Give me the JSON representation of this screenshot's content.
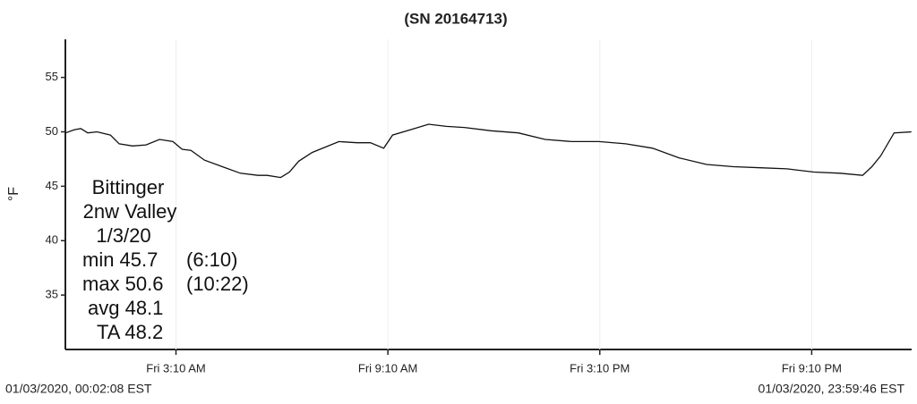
{
  "chart_data": {
    "type": "line",
    "title": "(SN 20164713)",
    "y_label": "°F",
    "x": [
      0.04,
      0.29,
      0.47,
      0.67,
      0.93,
      1.31,
      1.56,
      1.94,
      2.32,
      2.7,
      3.08,
      3.34,
      3.59,
      3.97,
      4.48,
      4.99,
      5.49,
      5.75,
      6.13,
      6.38,
      6.64,
      7.02,
      7.4,
      7.78,
      8.29,
      8.67,
      9.05,
      9.3,
      9.81,
      10.32,
      10.82,
      11.33,
      12.09,
      12.86,
      13.62,
      14.38,
      15.14,
      15.9,
      16.66,
      17.42,
      18.19,
      18.95,
      19.71,
      20.47,
      21.23,
      21.97,
      22.61,
      22.87,
      23.12,
      23.5,
      23.99
    ],
    "series": [
      {
        "name": "Temperature",
        "color": "#111111",
        "values": [
          49.9,
          50.2,
          50.3,
          49.9,
          50.0,
          49.7,
          48.9,
          48.7,
          48.8,
          49.3,
          49.1,
          48.4,
          48.3,
          47.4,
          46.8,
          46.2,
          46.0,
          46.0,
          45.8,
          46.3,
          47.3,
          48.1,
          48.6,
          49.1,
          49.0,
          49.0,
          48.5,
          49.7,
          50.2,
          50.7,
          50.5,
          50.4,
          50.1,
          49.9,
          49.3,
          49.1,
          49.1,
          48.9,
          48.5,
          47.6,
          47.0,
          46.8,
          46.7,
          46.6,
          46.3,
          46.2,
          46.0,
          46.8,
          47.8,
          49.9,
          50.0
        ]
      }
    ],
    "xlim": [
      0.035,
      23.996
    ],
    "ylim": [
      30,
      58.5
    ],
    "xticks": [
      {
        "value": 3.1667,
        "label": "Fri 3:10 AM"
      },
      {
        "value": 9.1667,
        "label": "Fri 9:10 AM"
      },
      {
        "value": 15.1667,
        "label": "Fri 3:10 PM"
      },
      {
        "value": 21.1667,
        "label": "Fri 9:10 PM"
      }
    ],
    "yticks": [
      35,
      40,
      45,
      50,
      55
    ],
    "grid": true,
    "annotations": [
      "Bittinger",
      "2nw Valley",
      "1/3/20",
      "min 45.7",
      "(6:10)",
      "max 50.6",
      "(10:22)",
      "avg 48.1",
      "TA 48.2"
    ],
    "start_label": "01/03/2020, 00:02:08 EST",
    "end_label": "01/03/2020, 23:59:46 EST"
  }
}
